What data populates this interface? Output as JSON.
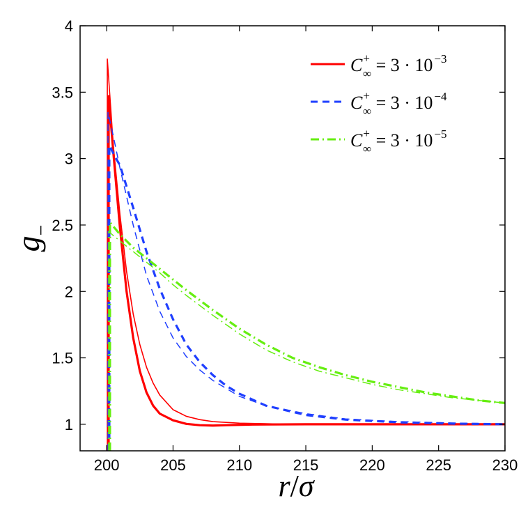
{
  "chart_data": {
    "type": "line",
    "xlabel_main": "r",
    "xlabel_sep": "/",
    "xlabel_sym": "σ",
    "ylabel_main": "g",
    "ylabel_sub": "−",
    "xlim": [
      198,
      230
    ],
    "ylim": [
      0.8,
      4
    ],
    "xticks": [
      200,
      205,
      210,
      215,
      220,
      225,
      230
    ],
    "yticks": [
      1,
      1.5,
      2,
      2.5,
      3,
      3.5,
      4
    ],
    "ytick_labels": [
      "1",
      "1.5",
      "2",
      "2.5",
      "3",
      "3.5",
      "4"
    ],
    "grid": false,
    "legend_position": "top-right",
    "series": [
      {
        "name": "C∞+ = 3·10−3",
        "legend": {
          "base": "C",
          "sub": "∞",
          "sup": "+",
          "eq": " = 3 · 10",
          "exp": "−3"
        },
        "color": "#ff0000",
        "dash": "solid",
        "curves": [
          {
            "width": 1.6,
            "points": [
              [
                200.05,
                0.8
              ],
              [
                200.05,
                3.75
              ],
              [
                200.5,
                3.1
              ],
              [
                201,
                2.58
              ],
              [
                201.5,
                2.15
              ],
              [
                202,
                1.83
              ],
              [
                202.5,
                1.6
              ],
              [
                203,
                1.43
              ],
              [
                203.5,
                1.31
              ],
              [
                204,
                1.22
              ],
              [
                205,
                1.11
              ],
              [
                206,
                1.06
              ],
              [
                207,
                1.035
              ],
              [
                208,
                1.02
              ],
              [
                210,
                1.008
              ],
              [
                213,
                1.002
              ],
              [
                220,
                1.0
              ],
              [
                230,
                1.0
              ]
            ]
          },
          {
            "width": 3.2,
            "points": [
              [
                200.15,
                0.8
              ],
              [
                200.15,
                3.47
              ],
              [
                200.5,
                3.05
              ],
              [
                201,
                2.48
              ],
              [
                201.5,
                2.0
              ],
              [
                202,
                1.65
              ],
              [
                202.5,
                1.4
              ],
              [
                203,
                1.24
              ],
              [
                203.5,
                1.14
              ],
              [
                204,
                1.08
              ],
              [
                205,
                1.03
              ],
              [
                206,
                1.003
              ],
              [
                207,
                0.993
              ],
              [
                208,
                0.99
              ],
              [
                209,
                0.993
              ],
              [
                211,
                0.998
              ],
              [
                215,
                1.0
              ],
              [
                230,
                1.0
              ]
            ]
          }
        ]
      },
      {
        "name": "C∞+ = 3·10−4",
        "legend": {
          "base": "C",
          "sub": "∞",
          "sup": "+",
          "eq": " = 3 · 10",
          "exp": "−4"
        },
        "color": "#1f3fff",
        "dash": "10 7",
        "curves": [
          {
            "width": 1.5,
            "points": [
              [
                200.1,
                0.8
              ],
              [
                200.1,
                3.35
              ],
              [
                200.5,
                3.17
              ],
              [
                201,
                2.93
              ],
              [
                202,
                2.5
              ],
              [
                203,
                2.12
              ],
              [
                204,
                1.85
              ],
              [
                205,
                1.65
              ],
              [
                206,
                1.51
              ],
              [
                207,
                1.41
              ],
              [
                208,
                1.33
              ],
              [
                210,
                1.21
              ],
              [
                212,
                1.14
              ],
              [
                215,
                1.08
              ],
              [
                218,
                1.04
              ],
              [
                222,
                1.02
              ],
              [
                226,
                1.01
              ],
              [
                230,
                1.0
              ]
            ]
          },
          {
            "width": 3.2,
            "points": [
              [
                200.2,
                0.8
              ],
              [
                200.2,
                3.1
              ],
              [
                200.6,
                3.02
              ],
              [
                201,
                2.95
              ],
              [
                202,
                2.63
              ],
              [
                203,
                2.3
              ],
              [
                204,
                2.02
              ],
              [
                205,
                1.79
              ],
              [
                206,
                1.6
              ],
              [
                207,
                1.47
              ],
              [
                208,
                1.37
              ],
              [
                209,
                1.29
              ],
              [
                210,
                1.23
              ],
              [
                212,
                1.14
              ],
              [
                215,
                1.07
              ],
              [
                218,
                1.035
              ],
              [
                222,
                1.015
              ],
              [
                226,
                1.005
              ],
              [
                230,
                1.0
              ]
            ]
          }
        ]
      },
      {
        "name": "C∞+ = 3·10−5",
        "legend": {
          "base": "C",
          "sub": "∞",
          "sup": "+",
          "eq": " = 3 · 10",
          "exp": "−5"
        },
        "color": "#66ee11",
        "dash": "12 5 2 5",
        "curves": [
          {
            "width": 1.5,
            "points": [
              [
                200.15,
                0.8
              ],
              [
                200.15,
                2.45
              ],
              [
                201,
                2.38
              ],
              [
                202,
                2.3
              ],
              [
                203,
                2.22
              ],
              [
                204,
                2.14
              ],
              [
                205,
                2.05
              ],
              [
                206,
                1.97
              ],
              [
                208,
                1.82
              ],
              [
                210,
                1.68
              ],
              [
                212,
                1.56
              ],
              [
                214,
                1.47
              ],
              [
                216,
                1.4
              ],
              [
                218,
                1.35
              ],
              [
                220,
                1.3
              ],
              [
                222,
                1.26
              ],
              [
                224,
                1.23
              ],
              [
                226,
                1.2
              ],
              [
                228,
                1.18
              ],
              [
                230,
                1.16
              ]
            ]
          },
          {
            "width": 3.2,
            "points": [
              [
                200.25,
                0.8
              ],
              [
                200.25,
                2.52
              ],
              [
                201,
                2.43
              ],
              [
                202,
                2.33
              ],
              [
                203,
                2.25
              ],
              [
                204,
                2.17
              ],
              [
                205,
                2.09
              ],
              [
                206,
                2.01
              ],
              [
                208,
                1.86
              ],
              [
                210,
                1.72
              ],
              [
                212,
                1.6
              ],
              [
                214,
                1.5
              ],
              [
                216,
                1.43
              ],
              [
                218,
                1.37
              ],
              [
                220,
                1.32
              ],
              [
                222,
                1.28
              ],
              [
                224,
                1.24
              ],
              [
                226,
                1.21
              ],
              [
                228,
                1.18
              ],
              [
                230,
                1.16
              ]
            ]
          }
        ]
      }
    ]
  }
}
